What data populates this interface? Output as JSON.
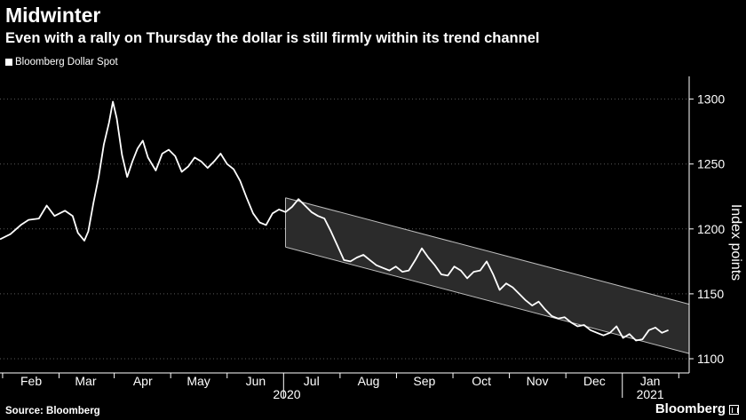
{
  "title": "Midwinter",
  "subtitle": "Even with a rally on Thursday the dollar is still firmly within its trend channel",
  "source": "Source: Bloomberg",
  "brand": "Bloomberg",
  "colors": {
    "background": "#000000",
    "line": "#ffffff",
    "grid": "#5a5a5a",
    "channel_fill": "#2b2b2b",
    "channel_border": "#bdbdbd"
  },
  "chart_data": {
    "type": "line",
    "title": "Midwinter",
    "ylabel": "Index points",
    "xlabel": "",
    "ylim": [
      1100,
      1310
    ],
    "yticks": [
      1100,
      1150,
      1200,
      1250,
      1300
    ],
    "xlim": [
      0,
      53.1
    ],
    "xticks": [
      {
        "label": "Feb",
        "pos": 2.4
      },
      {
        "label": "Mar",
        "pos": 6.6
      },
      {
        "label": "Apr",
        "pos": 11
      },
      {
        "label": "May",
        "pos": 15.3
      },
      {
        "label": "Jun",
        "pos": 19.7
      },
      {
        "label": "Jul",
        "pos": 24
      },
      {
        "label": "Aug",
        "pos": 28.4
      },
      {
        "label": "Sep",
        "pos": 32.7
      },
      {
        "label": "Oct",
        "pos": 37.1
      },
      {
        "label": "Nov",
        "pos": 41.4
      },
      {
        "label": "Dec",
        "pos": 45.8
      },
      {
        "label": "Jan",
        "pos": 50.1
      }
    ],
    "year_labels": [
      {
        "label": "2020",
        "pos": 22.1
      },
      {
        "label": "2021",
        "pos": 50.1
      }
    ],
    "series": [
      {
        "name": "Bloomberg Dollar Spot",
        "x": [
          0,
          0.8,
          1.6,
          2.2,
          3.0,
          3.6,
          4.2,
          5.0,
          5.6,
          6.0,
          6.5,
          6.8,
          7.2,
          7.6,
          8.0,
          8.4,
          8.7,
          9.0,
          9.4,
          9.8,
          10.2,
          10.6,
          11.0,
          11.4,
          12.0,
          12.5,
          13.0,
          13.5,
          14.0,
          14.5,
          15.0,
          15.5,
          16.0,
          16.5,
          17.0,
          17.5,
          18.0,
          18.5,
          19.0,
          19.5,
          20.0,
          20.5,
          21.0,
          21.5,
          22.0,
          22.5,
          23.0,
          23.5,
          24.0,
          24.5,
          25.0,
          25.5,
          26.0,
          26.5,
          27.0,
          27.5,
          28.0,
          28.5,
          29.0,
          29.5,
          30.0,
          30.5,
          31.0,
          31.5,
          32.0,
          32.5,
          33.0,
          33.5,
          34.0,
          34.5,
          35.0,
          35.5,
          36.0,
          36.5,
          37.0,
          37.5,
          38.0,
          38.5,
          39.0,
          39.5,
          40.0,
          40.5,
          41.0,
          41.5,
          42.0,
          42.5,
          43.0,
          43.5,
          44.0,
          44.5,
          45.0,
          45.5,
          46.0,
          46.5,
          47.0,
          47.5,
          48.0,
          48.5,
          49.0,
          49.5,
          50.0,
          50.5,
          51.0,
          51.5
        ],
        "values": [
          1192,
          1196,
          1203,
          1207,
          1208,
          1218,
          1210,
          1214,
          1210,
          1197,
          1191,
          1198,
          1220,
          1240,
          1265,
          1282,
          1298,
          1285,
          1257,
          1240,
          1252,
          1262,
          1268,
          1255,
          1245,
          1258,
          1261,
          1256,
          1244,
          1248,
          1255,
          1252,
          1247,
          1252,
          1258,
          1250,
          1246,
          1237,
          1224,
          1212,
          1205,
          1203,
          1212,
          1215,
          1213,
          1217,
          1223,
          1218,
          1213,
          1210,
          1208,
          1198,
          1187,
          1176,
          1175,
          1178,
          1180,
          1176,
          1172,
          1170,
          1168,
          1171,
          1167,
          1168,
          1176,
          1185,
          1178,
          1172,
          1165,
          1164,
          1171,
          1168,
          1162,
          1167,
          1168,
          1175,
          1165,
          1153,
          1158,
          1155,
          1150,
          1145,
          1141,
          1144,
          1138,
          1133,
          1131,
          1132,
          1128,
          1125,
          1126,
          1122,
          1120,
          1118,
          1120,
          1125,
          1116,
          1119,
          1114,
          1115,
          1122,
          1124,
          1120,
          1122
        ]
      }
    ],
    "annotations": [
      {
        "type": "trend-channel",
        "x_start": 22.0,
        "x_end": 53.1,
        "upper": [
          1224,
          1142
        ],
        "lower": [
          1186,
          1104
        ]
      }
    ]
  }
}
